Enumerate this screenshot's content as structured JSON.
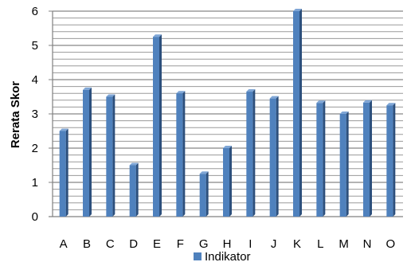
{
  "chart_data": {
    "type": "bar",
    "ylabel": "Rerata Skor",
    "xlabel": "",
    "ylim": [
      0,
      6
    ],
    "yticks": [
      "0",
      "1",
      "2",
      "3",
      "4",
      "5",
      "6"
    ],
    "minor_gridline_step": 0.2,
    "grid": true,
    "legend_position": "bottom",
    "categories": [
      "A",
      "B",
      "C",
      "D",
      "E",
      "F",
      "G",
      "H",
      "I",
      "J",
      "K",
      "L",
      "M",
      "N",
      "O"
    ],
    "series": [
      {
        "name": "Indikator",
        "color": "#4f81bd",
        "values": [
          2.5,
          3.7,
          3.5,
          1.5,
          5.25,
          3.6,
          1.25,
          2.0,
          3.65,
          3.45,
          6.0,
          3.32,
          3.0,
          3.33,
          3.25
        ]
      }
    ]
  }
}
